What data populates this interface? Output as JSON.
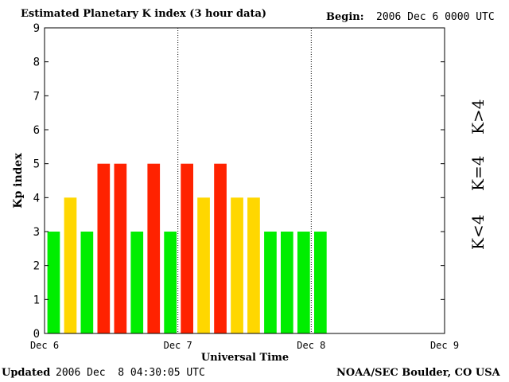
{
  "header": {
    "title": "Estimated Planetary K index (3 hour data)",
    "begin_label": "Begin:",
    "begin_value": "2006 Dec 6 0000 UTC"
  },
  "footer": {
    "updated_label": "Updated",
    "updated_value": "2006 Dec  8 04:30:05 UTC",
    "credit": "NOAA/SEC Boulder, CO USA"
  },
  "legend": {
    "low": "K<4",
    "mid": "K=4",
    "high": "K>4"
  },
  "colors": {
    "low": "#00ee00",
    "mid": "#ffd700",
    "high": "#ff2200"
  },
  "chart_data": {
    "type": "bar",
    "title": "Estimated Planetary K index (3 hour data)",
    "xlabel": "Universal Time",
    "ylabel": "Kp index",
    "ylim": [
      0,
      9
    ],
    "yticks": [
      "0",
      "1",
      "2",
      "3",
      "4",
      "5",
      "6",
      "7",
      "8",
      "9"
    ],
    "xticks": [
      "Dec 6",
      "Dec 7",
      "Dec 8",
      "Dec 9"
    ],
    "interval_hours": 3,
    "values": [
      3,
      4,
      3,
      5,
      5,
      3,
      5,
      3,
      5,
      4,
      5,
      4,
      4,
      3,
      3,
      3,
      3
    ]
  }
}
